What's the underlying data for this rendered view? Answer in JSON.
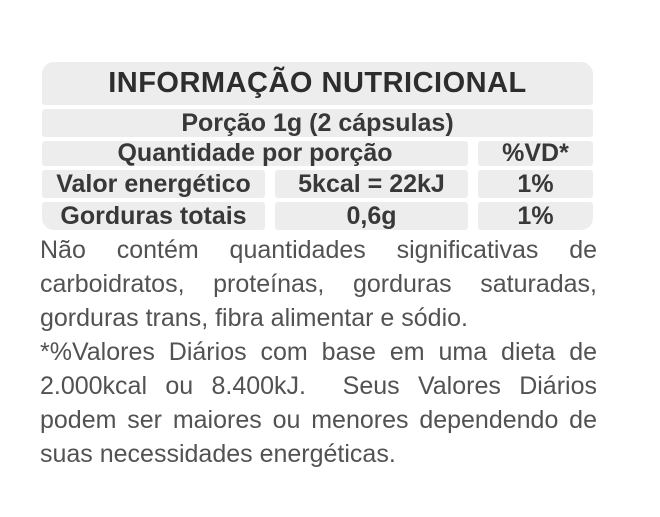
{
  "table": {
    "title": "INFORMAÇÃO NUTRICIONAL",
    "serving": "Porção 1g (2 cápsulas)",
    "header": {
      "quantity": "Quantidade por porção",
      "dv": "%VD*"
    },
    "rows": [
      {
        "name": "Valor energético",
        "amount": "5kcal = 22kJ",
        "dv": "1%"
      },
      {
        "name": "Gorduras totais",
        "amount": "0,6g",
        "dv": "1%"
      }
    ]
  },
  "notes": [
    "Não contém quantidades significativas de carboidratos, proteínas, gorduras saturadas, gorduras trans, fibra alimentar e sódio.",
    "*%Valores Diários com base em uma dieta de 2.000kcal ou 8.400kJ.  Seus Valores Diários podem ser maiores ou menores dependendo de suas necessidades energéticas."
  ],
  "colors": {
    "page_bg": "#ffffff",
    "cell_bg": "#ededed",
    "title_text": "#2d2d2d",
    "table_text": "#383838",
    "body_text": "#525252"
  }
}
